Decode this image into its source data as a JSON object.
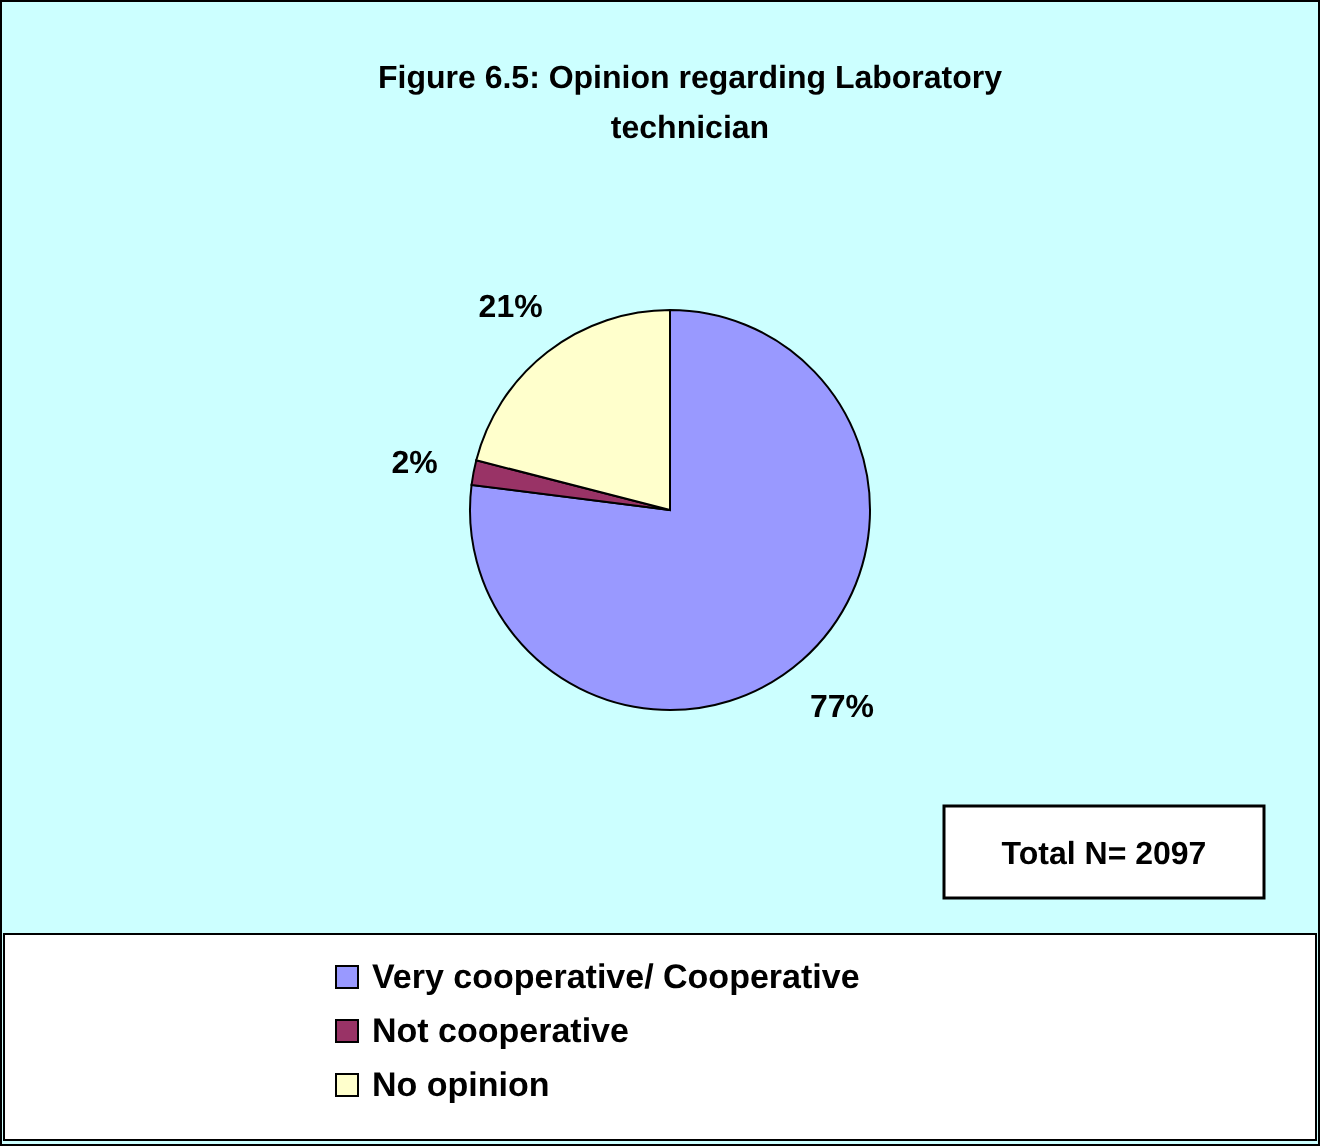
{
  "chart_data": {
    "type": "pie",
    "title": "Figure 6.5: Opinion regarding Laboratory technician",
    "categories": [
      "Very cooperative/ Cooperative",
      "Not cooperative",
      "No opinion"
    ],
    "values": [
      77,
      2,
      21
    ],
    "colors": [
      "#9999ff",
      "#993366",
      "#ffffcc"
    ],
    "value_labels": [
      "77%",
      "2%",
      "21%"
    ],
    "annotations": [
      "Total N= 2097"
    ],
    "legend": "bottom"
  }
}
